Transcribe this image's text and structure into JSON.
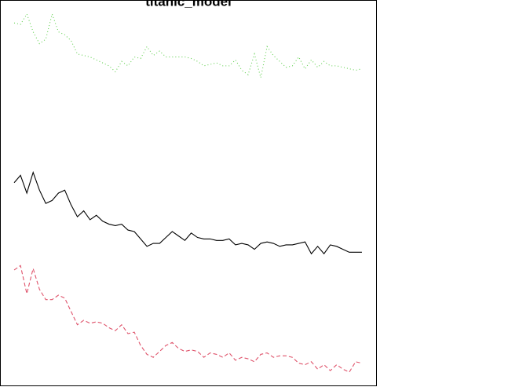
{
  "chart_data": {
    "type": "line",
    "title": "titanic_model",
    "x": [
      1,
      2,
      3,
      4,
      5,
      6,
      7,
      8,
      9,
      10,
      11,
      12,
      13,
      14,
      15,
      16,
      17,
      18,
      19,
      20,
      21,
      22,
      23,
      24,
      25,
      26,
      27,
      28,
      29,
      30,
      31,
      32,
      33,
      34,
      35,
      36,
      37,
      38,
      39,
      40,
      41,
      42,
      43,
      44,
      45,
      46,
      47,
      48,
      49,
      50,
      51,
      52,
      53,
      54,
      55,
      56
    ],
    "xlim": [
      -1.24,
      58.24
    ],
    "ylim": [
      0.065,
      0.3255
    ],
    "series": [
      {
        "color": "#000000",
        "dash": "solid",
        "values": [
          0.202,
          0.207,
          0.195,
          0.209,
          0.197,
          0.188,
          0.19,
          0.195,
          0.197,
          0.187,
          0.179,
          0.183,
          0.177,
          0.18,
          0.176,
          0.174,
          0.173,
          0.174,
          0.17,
          0.169,
          0.164,
          0.159,
          0.161,
          0.161,
          0.165,
          0.169,
          0.166,
          0.163,
          0.168,
          0.165,
          0.164,
          0.164,
          0.163,
          0.163,
          0.164,
          0.16,
          0.161,
          0.16,
          0.157,
          0.161,
          0.162,
          0.161,
          0.159,
          0.16,
          0.16,
          0.161,
          0.162,
          0.154,
          0.159,
          0.154,
          0.16,
          0.159,
          0.157,
          0.155,
          0.155,
          0.155
        ]
      },
      {
        "color": "#df536b",
        "dash": "dashed",
        "values": [
          0.143,
          0.146,
          0.127,
          0.144,
          0.13,
          0.123,
          0.123,
          0.126,
          0.124,
          0.115,
          0.106,
          0.109,
          0.107,
          0.108,
          0.107,
          0.104,
          0.102,
          0.106,
          0.1,
          0.101,
          0.092,
          0.086,
          0.084,
          0.088,
          0.092,
          0.094,
          0.09,
          0.088,
          0.089,
          0.088,
          0.084,
          0.087,
          0.086,
          0.084,
          0.087,
          0.082,
          0.084,
          0.083,
          0.081,
          0.086,
          0.087,
          0.084,
          0.085,
          0.085,
          0.084,
          0.08,
          0.079,
          0.081,
          0.076,
          0.079,
          0.075,
          0.079,
          0.076,
          0.074,
          0.081,
          0.08
        ]
      },
      {
        "color": "#61d04f",
        "dash": "dotted",
        "values": [
          0.31,
          0.309,
          0.316,
          0.304,
          0.296,
          0.299,
          0.316,
          0.304,
          0.302,
          0.298,
          0.289,
          0.288,
          0.287,
          0.285,
          0.283,
          0.281,
          0.277,
          0.284,
          0.281,
          0.287,
          0.286,
          0.294,
          0.288,
          0.291,
          0.287,
          0.287,
          0.287,
          0.287,
          0.286,
          0.284,
          0.281,
          0.282,
          0.283,
          0.281,
          0.281,
          0.285,
          0.278,
          0.275,
          0.289,
          0.273,
          0.294,
          0.288,
          0.284,
          0.28,
          0.281,
          0.287,
          0.279,
          0.285,
          0.28,
          0.284,
          0.281,
          0.281,
          0.28,
          0.279,
          0.278,
          0.279
        ]
      }
    ]
  }
}
